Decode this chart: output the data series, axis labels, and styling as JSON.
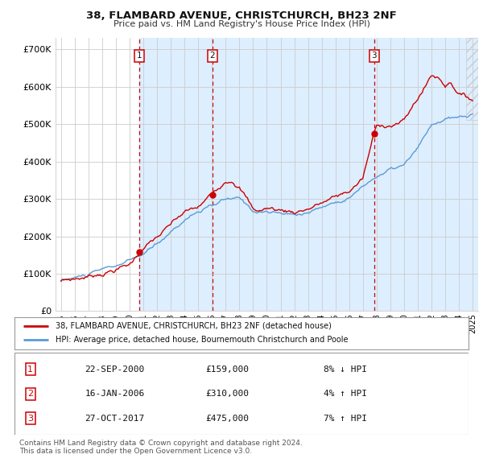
{
  "title": "38, FLAMBARD AVENUE, CHRISTCHURCH, BH23 2NF",
  "subtitle": "Price paid vs. HM Land Registry's House Price Index (HPI)",
  "ylim": [
    0,
    730000
  ],
  "yticks": [
    0,
    100000,
    200000,
    300000,
    400000,
    500000,
    600000,
    700000
  ],
  "ytick_labels": [
    "£0",
    "£100K",
    "£200K",
    "£300K",
    "£400K",
    "£500K",
    "£600K",
    "£700K"
  ],
  "hpi_color": "#5b9bd5",
  "price_color": "#cc0000",
  "shade_color": "#ddeeff",
  "sale_year_nums": [
    2000.72,
    2006.04,
    2017.83
  ],
  "sale_prices": [
    159000,
    310000,
    475000
  ],
  "sale_labels": [
    "1",
    "2",
    "3"
  ],
  "legend_entry1": "38, FLAMBARD AVENUE, CHRISTCHURCH, BH23 2NF (detached house)",
  "legend_entry2": "HPI: Average price, detached house, Bournemouth Christchurch and Poole",
  "table_data": [
    [
      "1",
      "22-SEP-2000",
      "£159,000",
      "8% ↓ HPI"
    ],
    [
      "2",
      "16-JAN-2006",
      "£310,000",
      "4% ↑ HPI"
    ],
    [
      "3",
      "27-OCT-2017",
      "£475,000",
      "7% ↑ HPI"
    ]
  ],
  "footer": "Contains HM Land Registry data © Crown copyright and database right 2024.\nThis data is licensed under the Open Government Licence v3.0.",
  "background_color": "#ffffff",
  "grid_color": "#cccccc",
  "xlim_left": 1994.6,
  "xlim_right": 2025.4
}
